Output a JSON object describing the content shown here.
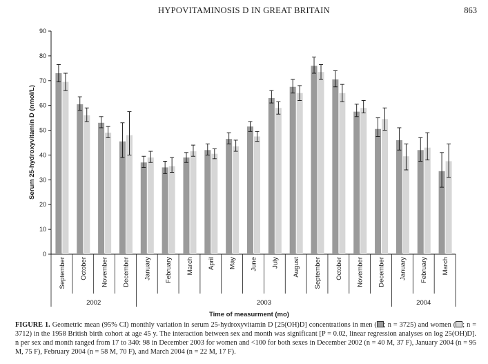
{
  "header": {
    "running_head": "HYPOVITAMINOSIS D IN GREAT BRITAIN",
    "page_number": "863"
  },
  "chart_data": {
    "type": "bar",
    "ylabel": "Serum 25-hydroxyvitamin D (nmol/L)",
    "xlabel": "Time of measurment (mo)",
    "ylim": [
      0,
      90
    ],
    "yticks": [
      0,
      10,
      20,
      30,
      40,
      50,
      60,
      70,
      80,
      90
    ],
    "grid": false,
    "categories": [
      "September",
      "October",
      "November",
      "December",
      "January",
      "February",
      "March",
      "April",
      "May",
      "June",
      "July",
      "August",
      "September",
      "October",
      "November",
      "December",
      "January",
      "February",
      "March"
    ],
    "year_groups": [
      {
        "label": "2002",
        "start": 0,
        "end": 3
      },
      {
        "label": "2003",
        "start": 4,
        "end": 15
      },
      {
        "label": "2004",
        "start": 16,
        "end": 18
      }
    ],
    "series": [
      {
        "color": "#9a9a9a",
        "values": [
          73,
          60.5,
          53,
          45.5,
          37,
          35,
          39,
          42,
          46.5,
          51.5,
          63,
          67.5,
          76,
          70.5,
          57.5,
          50.5,
          46,
          42,
          33.5
        ],
        "ci_low": [
          69.5,
          58,
          51,
          39,
          35,
          32.5,
          37,
          40,
          44.5,
          49.5,
          61,
          65,
          73,
          67.5,
          55.5,
          47.5,
          42,
          37.5,
          27
        ],
        "ci_high": [
          76.5,
          63.5,
          55.5,
          53,
          39.5,
          37.5,
          41,
          44.5,
          49,
          53.5,
          66,
          70.5,
          79.5,
          74,
          60.5,
          55,
          51,
          47,
          41
        ]
      },
      {
        "color": "#d6d6d6",
        "values": [
          69.5,
          56,
          49,
          48,
          39,
          35.5,
          41.5,
          40.5,
          43.5,
          47.5,
          59,
          65,
          73.5,
          65,
          59,
          54.5,
          39.5,
          43,
          37.5
        ],
        "ci_low": [
          66,
          53.5,
          47,
          40,
          37,
          33,
          39.5,
          38.5,
          41.5,
          45.5,
          56.5,
          62,
          70.5,
          61.5,
          57,
          50,
          34,
          38,
          31
        ],
        "ci_high": [
          73,
          59,
          51.5,
          57.5,
          41.5,
          39,
          44,
          42.5,
          46,
          49.5,
          61.5,
          68,
          76.5,
          68.5,
          62,
          59,
          44.5,
          49,
          44.5
        ]
      }
    ]
  },
  "caption": {
    "label": "FIGURE 1.",
    "part1": " Geometric mean (95% CI) monthly variation in serum 25-hydroxyvitamin D [25(OH)D] concentrations in men (",
    "men_n": "; n = 3725) and women (",
    "women_n": "; n = 3712) in the 1958 British birth cohort at age 45 y. The interaction between sex and month was significant [P = 0.02, linear regression analyses on log 25(OH)D]. n per sex and month ranged from 17 to 340: 98 in December 2003 for women and <100 for both sexes in December 2002 (n = 40 M, 37 F), January 2004 (n = 95 M, 75 F), February 2004 (n = 58 M, 70 F), and March 2004 (n = 22 M, 17 F)."
  }
}
